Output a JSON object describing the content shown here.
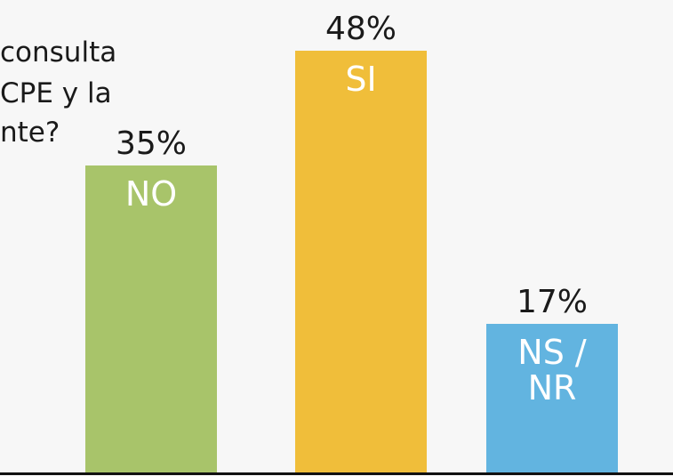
{
  "chart_data": {
    "type": "bar",
    "title_lines": [
      "consulta",
      "CPE y la",
      "nte?"
    ],
    "categories": [
      "NO",
      "SI",
      "NS / NR"
    ],
    "values": [
      35,
      48,
      17
    ],
    "value_labels": [
      "35%",
      "48%",
      "17%"
    ],
    "colors": [
      "#a8c46a",
      "#f0be3a",
      "#62b4e0"
    ]
  }
}
